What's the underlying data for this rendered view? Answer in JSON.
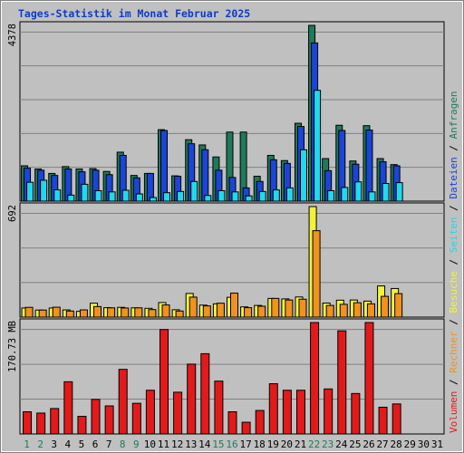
{
  "chart_data": {
    "type": "bar",
    "title": "Tages-Statistik im Monat Februar 2025",
    "days": [
      "1",
      "2",
      "3",
      "4",
      "5",
      "6",
      "7",
      "8",
      "9",
      "10",
      "11",
      "12",
      "13",
      "14",
      "15",
      "16",
      "17",
      "18",
      "19",
      "20",
      "21",
      "22",
      "23",
      "24",
      "25",
      "26",
      "27",
      "28",
      "29",
      "30",
      "31"
    ],
    "weekend_days": [
      "1",
      "2",
      "8",
      "9",
      "15",
      "16",
      "22",
      "23"
    ],
    "panels": [
      {
        "name": "hits",
        "ymax_label": "4378",
        "ymax": 4378,
        "series": [
          {
            "name": "Anfragen",
            "color": "#1f7a5a",
            "values": [
              880,
              800,
              690,
              860,
              800,
              810,
              740,
              1220,
              640,
              690,
              1780,
              630,
              1530,
              1400,
              1100,
              1720,
              1720,
              620,
              1140,
              1010,
              1940,
              4378,
              1060,
              1890,
              1000,
              1880,
              1060,
              910,
              0,
              0,
              0
            ]
          },
          {
            "name": "Dateien",
            "color": "#1a45d6",
            "values": [
              820,
              770,
              640,
              800,
              730,
              770,
              660,
              1140,
              580,
              690,
              1760,
              620,
              1430,
              1280,
              770,
              590,
              330,
              490,
              1030,
              940,
              1860,
              3940,
              760,
              1760,
              920,
              1770,
              980,
              880,
              0,
              0,
              0
            ]
          },
          {
            "name": "Seiten",
            "color": "#22d8ee",
            "values": [
              470,
              520,
              280,
              150,
              420,
              260,
              230,
              270,
              180,
              90,
              210,
              240,
              490,
              140,
              260,
              230,
              130,
              240,
              280,
              330,
              1280,
              2760,
              260,
              340,
              480,
              230,
              440,
              460,
              0,
              0,
              0
            ]
          }
        ]
      },
      {
        "name": "visits",
        "ymax_label": "692",
        "ymax": 692,
        "series": [
          {
            "name": "Besuche",
            "color": "#f2f23a",
            "values": [
              57,
              44,
              57,
              45,
              36,
              87,
              59,
              61,
              58,
              55,
              91,
              46,
              148,
              75,
              83,
              124,
              64,
              73,
              117,
              114,
              126,
              692,
              88,
              106,
              107,
              100,
              195,
              179,
              0,
              0,
              0
            ]
          },
          {
            "name": "Rechner",
            "color": "#f0921e",
            "values": [
              61,
              44,
              62,
              38,
              45,
              66,
              58,
              57,
              58,
              47,
              76,
              38,
              125,
              70,
              87,
              150,
              59,
              68,
              117,
              107,
              112,
              541,
              73,
              80,
              90,
              83,
              130,
              147,
              0,
              0,
              0
            ]
          }
        ]
      },
      {
        "name": "volume",
        "ymax_label": "170.73 MB",
        "ymax": 170.73,
        "series": [
          {
            "name": "Volumen",
            "color": "#e31a1a",
            "values": [
              34,
              32,
              39,
              80,
              27,
              53,
              43,
              99,
              47,
              67,
              160,
              64,
              107,
              123,
              81,
              34,
              18,
              36,
              77,
              67,
              67,
              170.73,
              69,
              158,
              62,
              170.73,
              41,
              46,
              0,
              0,
              0
            ]
          }
        ]
      }
    ],
    "legend": [
      "Volumen",
      "Rechner",
      "Besuche",
      "Seiten",
      "Dateien",
      "Anfragen"
    ],
    "legend_separator": " / ",
    "legend_colors": {
      "Volumen": "#e31a1a",
      "Rechner": "#f0921e",
      "Besuche": "#f2f23a",
      "Seiten": "#22d8ee",
      "Dateien": "#1a45d6",
      "Anfragen": "#1f7a5a"
    }
  },
  "theme": {
    "background": "#c0c0c0",
    "title_color": "#0c3cc8",
    "label_color": "#000000",
    "weekday_color": "#000000",
    "weekend_color": "#1f7a5a",
    "grid_color": "#808080"
  }
}
